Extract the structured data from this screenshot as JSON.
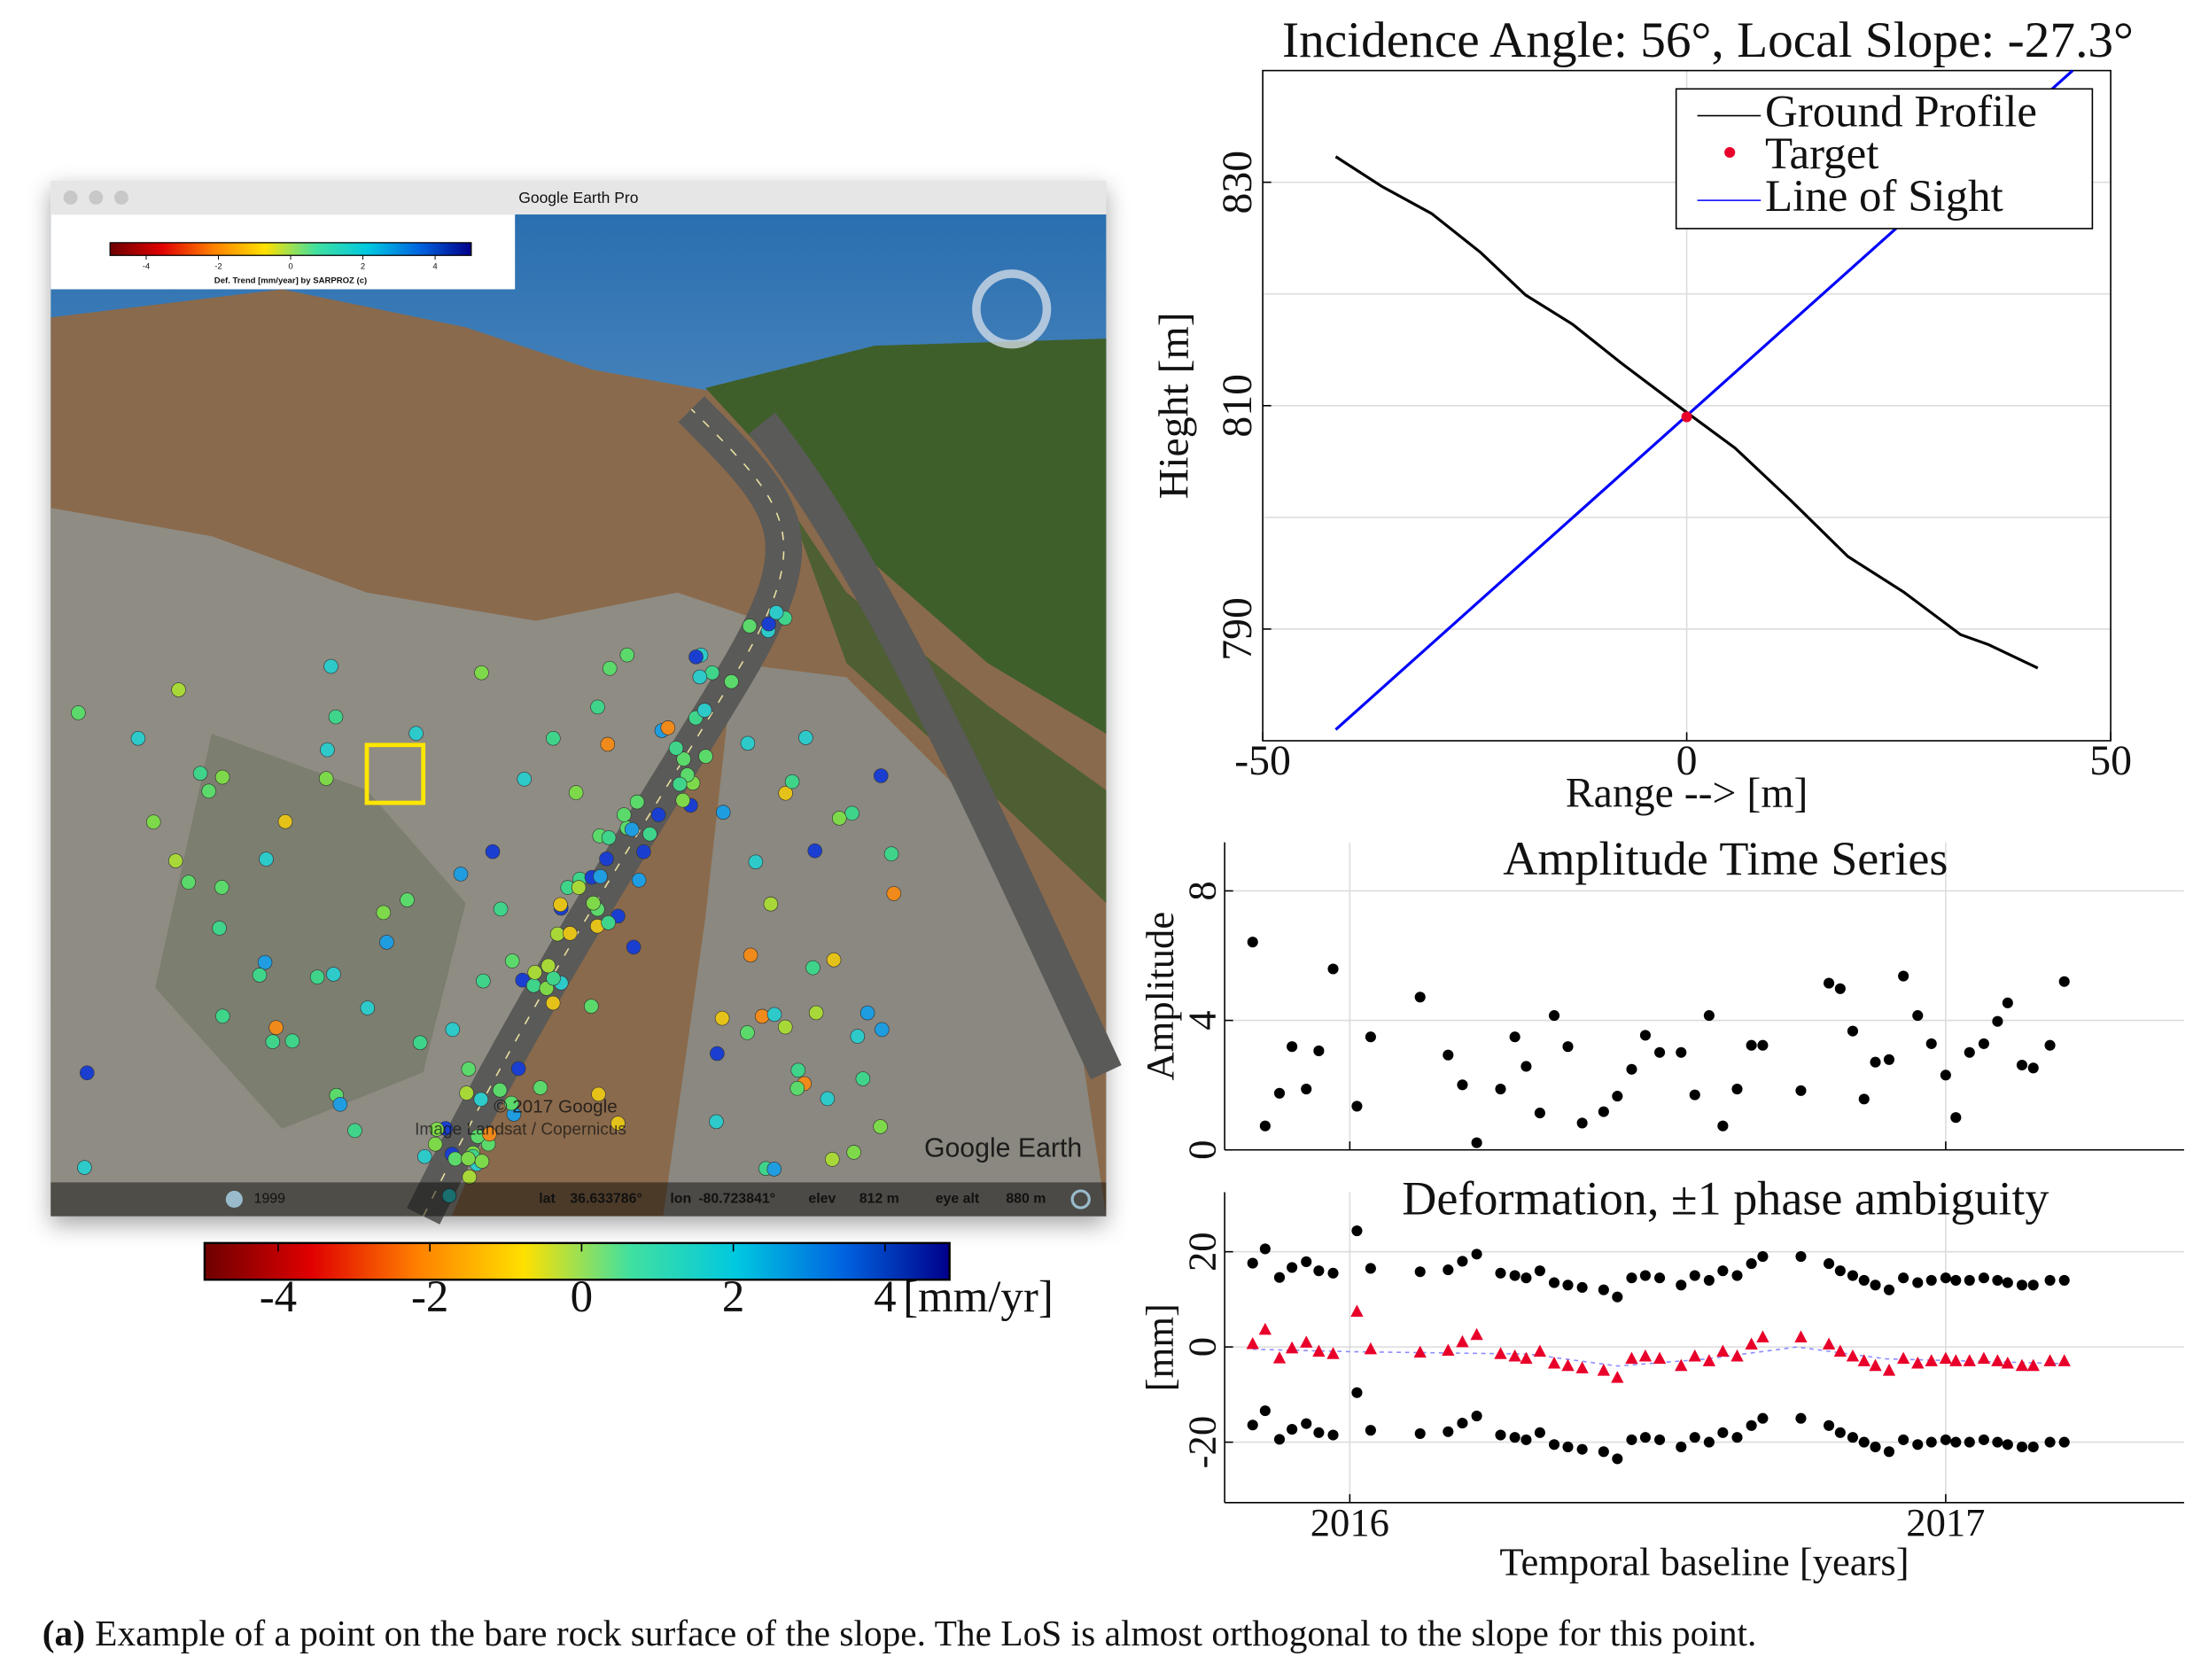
{
  "window": {
    "title": "Google Earth Pro",
    "legend": {
      "ticks": [
        -4,
        -2,
        0,
        2,
        4
      ],
      "lim": [
        -5,
        5
      ],
      "label": "Def. Trend [mm/year] by SARPROZ (c)"
    },
    "watermark": {
      "copyright": "© 2017 Google",
      "imagery": "Image Landsat / Copernicus",
      "brand": "Google Earth"
    },
    "status": {
      "year": "1999",
      "lat_label": "lat",
      "lat": "36.633786°",
      "lon_label": "lon",
      "lon": "-80.723841°",
      "elev_label": "elev",
      "elev": "812 m",
      "eye_label": "eye alt",
      "eye": "880 m"
    }
  },
  "colorbar": {
    "lim": [
      -4.97,
      4.85
    ],
    "ticks": [
      -4,
      -2,
      0,
      2,
      4
    ],
    "unit": "[mm/yr]",
    "colors": [
      "#6e0000",
      "#e00000",
      "#ff8000",
      "#ffe000",
      "#40e0a0",
      "#00c8e0",
      "#0064e0",
      "#00008a"
    ]
  },
  "chart_data": [
    {
      "type": "line",
      "title": "Incidence Angle: 56°, Local Slope: -27.3°",
      "xlabel": "Range --> [m]",
      "ylabel": "Hieght [m]",
      "xlim": [
        -50,
        50
      ],
      "xticks": [
        -50,
        0,
        50
      ],
      "ylim": [
        780,
        840
      ],
      "yticks": [
        790,
        810,
        830
      ],
      "minor_yticks": [
        800,
        820
      ],
      "grid": true,
      "frame": "box",
      "legend": "upper right",
      "series": [
        {
          "name": "Ground Profile",
          "color": "#000000",
          "linestyle": "-",
          "x": [
            -41.4,
            -35.9,
            -30.1,
            -24.3,
            -19.0,
            -13.5,
            -7.7,
            0,
            5.7,
            12.3,
            19.0,
            25.6,
            32.3,
            35.6,
            41.4
          ],
          "values": [
            832.3,
            829.6,
            827.2,
            823.7,
            819.9,
            817.3,
            813.8,
            809.4,
            806.2,
            801.5,
            796.5,
            793.3,
            789.5,
            788.6,
            786.5
          ]
        },
        {
          "name": "Target",
          "color": "#e8002a",
          "marker": "o",
          "x": [
            0
          ],
          "values": [
            809.0
          ]
        },
        {
          "name": "Line of Sight",
          "color": "#0000ff",
          "linestyle": "-",
          "x": [
            -41.4,
            45.5
          ],
          "values": [
            781.0,
            840.0
          ]
        }
      ]
    },
    {
      "type": "scatter",
      "title": "Amplitude Time Series",
      "ylabel": "Amplitude",
      "xlim": [
        2015.79,
        2017.4
      ],
      "xticks": [
        2016,
        2017
      ],
      "show_xtick_labels": false,
      "ylim": [
        0,
        9.5
      ],
      "yticks": [
        0,
        4,
        8
      ],
      "grid": true,
      "frame": "open",
      "x": [
        2015.837,
        2015.858,
        2015.882,
        2015.903,
        2015.927,
        2015.948,
        2015.972,
        2016.012,
        2016.035,
        2016.118,
        2016.165,
        2016.189,
        2016.213,
        2016.253,
        2016.277,
        2016.296,
        2016.319,
        2016.343,
        2016.366,
        2016.39,
        2016.426,
        2016.449,
        2016.473,
        2016.496,
        2016.52,
        2016.556,
        2016.579,
        2016.603,
        2016.626,
        2016.65,
        2016.674,
        2016.693,
        2016.757,
        2016.804,
        2016.823,
        2016.844,
        2016.863,
        2016.882,
        2016.905,
        2016.929,
        2016.953,
        2016.976,
        2017.0,
        2017.017,
        2017.04,
        2017.064,
        2017.087,
        2017.104,
        2017.128,
        2017.147,
        2017.175,
        2017.199
      ],
      "series": [
        {
          "color": "#000000",
          "marker": "o",
          "values": [
            6.42,
            0.74,
            1.75,
            3.19,
            1.88,
            3.06,
            5.59,
            1.35,
            3.49,
            4.72,
            2.93,
            2.01,
            0.22,
            1.88,
            3.49,
            2.58,
            1.14,
            4.15,
            3.19,
            0.83,
            1.18,
            1.66,
            2.49,
            3.54,
            3.01,
            3.01,
            1.7,
            4.15,
            0.74,
            1.88,
            3.23,
            3.23,
            1.83,
            5.15,
            4.98,
            3.67,
            1.57,
            2.71,
            2.79,
            5.37,
            4.15,
            3.28,
            2.31,
            1.0,
            3.01,
            3.28,
            3.97,
            4.54,
            2.62,
            2.53,
            3.23,
            5.2
          ]
        }
      ]
    },
    {
      "type": "scatter",
      "title": "Deformation, ±1 phase ambiguity",
      "ylabel": "[mm]",
      "xlabel": "Temporal baseline [years]",
      "xlim": [
        2015.79,
        2017.4
      ],
      "xticks": [
        2016,
        2017
      ],
      "ylim": [
        -32.7,
        32.5
      ],
      "yticks": [
        -20,
        0,
        20
      ],
      "grid": true,
      "frame": "open",
      "x": [
        2015.837,
        2015.858,
        2015.882,
        2015.903,
        2015.927,
        2015.948,
        2015.972,
        2016.012,
        2016.035,
        2016.118,
        2016.165,
        2016.189,
        2016.213,
        2016.253,
        2016.277,
        2016.296,
        2016.319,
        2016.343,
        2016.366,
        2016.39,
        2016.426,
        2016.449,
        2016.473,
        2016.496,
        2016.52,
        2016.556,
        2016.579,
        2016.603,
        2016.626,
        2016.65,
        2016.674,
        2016.693,
        2016.757,
        2016.804,
        2016.823,
        2016.844,
        2016.863,
        2016.882,
        2016.905,
        2016.929,
        2016.953,
        2016.976,
        2017.0,
        2017.017,
        2017.04,
        2017.064,
        2017.087,
        2017.104,
        2017.128,
        2017.147,
        2017.175,
        2017.199
      ],
      "series": [
        {
          "color": "#8c8cff",
          "linestyle": "--",
          "x": [
            2015.837,
            2016.0,
            2016.3,
            2016.45,
            2016.6,
            2016.75,
            2016.9,
            2017.2
          ],
          "values": [
            -0.5,
            -1.0,
            -1.5,
            -4.0,
            -2.5,
            0.0,
            -2.5,
            -3.5
          ]
        },
        {
          "color": "#000000",
          "marker": "o",
          "values": [
            17.6,
            20.6,
            14.6,
            16.7,
            17.9,
            16.0,
            15.5,
            24.4,
            16.5,
            15.8,
            16.2,
            18.0,
            19.5,
            15.5,
            15.0,
            14.5,
            16.0,
            13.5,
            13.0,
            12.5,
            12.0,
            10.5,
            14.5,
            15.0,
            14.5,
            13.0,
            15.0,
            14.0,
            16.0,
            15.0,
            17.5,
            19.0,
            19.0,
            17.5,
            16.0,
            15.0,
            14.0,
            13.0,
            12.0,
            14.5,
            13.5,
            14.0,
            14.5,
            14.0,
            14.0,
            14.5,
            14.0,
            13.5,
            13.0,
            13.0,
            14.0,
            14.0
          ]
        },
        {
          "color": "#e8002a",
          "marker": "^",
          "values": [
            0.6,
            3.6,
            -2.4,
            -0.3,
            0.9,
            -1.0,
            -1.5,
            7.4,
            -0.5,
            -1.2,
            -0.8,
            1.0,
            2.5,
            -1.5,
            -2.0,
            -2.5,
            -1.0,
            -3.5,
            -4.0,
            -4.5,
            -5.0,
            -6.5,
            -2.5,
            -2.0,
            -2.5,
            -4.0,
            -2.0,
            -3.0,
            -1.0,
            -2.0,
            0.5,
            2.0,
            2.0,
            0.5,
            -1.0,
            -2.0,
            -3.0,
            -4.0,
            -5.0,
            -2.5,
            -3.5,
            -3.0,
            -2.5,
            -3.0,
            -3.0,
            -2.5,
            -3.0,
            -3.5,
            -4.0,
            -4.0,
            -3.0,
            -3.0
          ]
        },
        {
          "color": "#000000",
          "marker": "o",
          "values": [
            -16.4,
            -13.4,
            -19.4,
            -17.3,
            -16.1,
            -18.0,
            -18.5,
            -9.6,
            -17.5,
            -18.2,
            -17.8,
            -16.0,
            -14.5,
            -18.5,
            -19.0,
            -19.5,
            -18.0,
            -20.5,
            -21.0,
            -21.5,
            -22.0,
            -23.5,
            -19.5,
            -19.0,
            -19.5,
            -21.0,
            -19.0,
            -20.0,
            -18.0,
            -19.0,
            -16.5,
            -15.0,
            -15.0,
            -16.5,
            -18.0,
            -19.0,
            -20.0,
            -21.0,
            -22.0,
            -19.5,
            -20.5,
            -20.0,
            -19.5,
            -20.0,
            -20.0,
            -19.5,
            -20.0,
            -20.5,
            -21.0,
            -21.0,
            -20.0,
            -20.0
          ]
        }
      ]
    }
  ],
  "caption": {
    "label": "(a)",
    "text": "Example of a point on the bare rock surface of the slope. The LoS is almost orthogonal to the slope for this point."
  }
}
